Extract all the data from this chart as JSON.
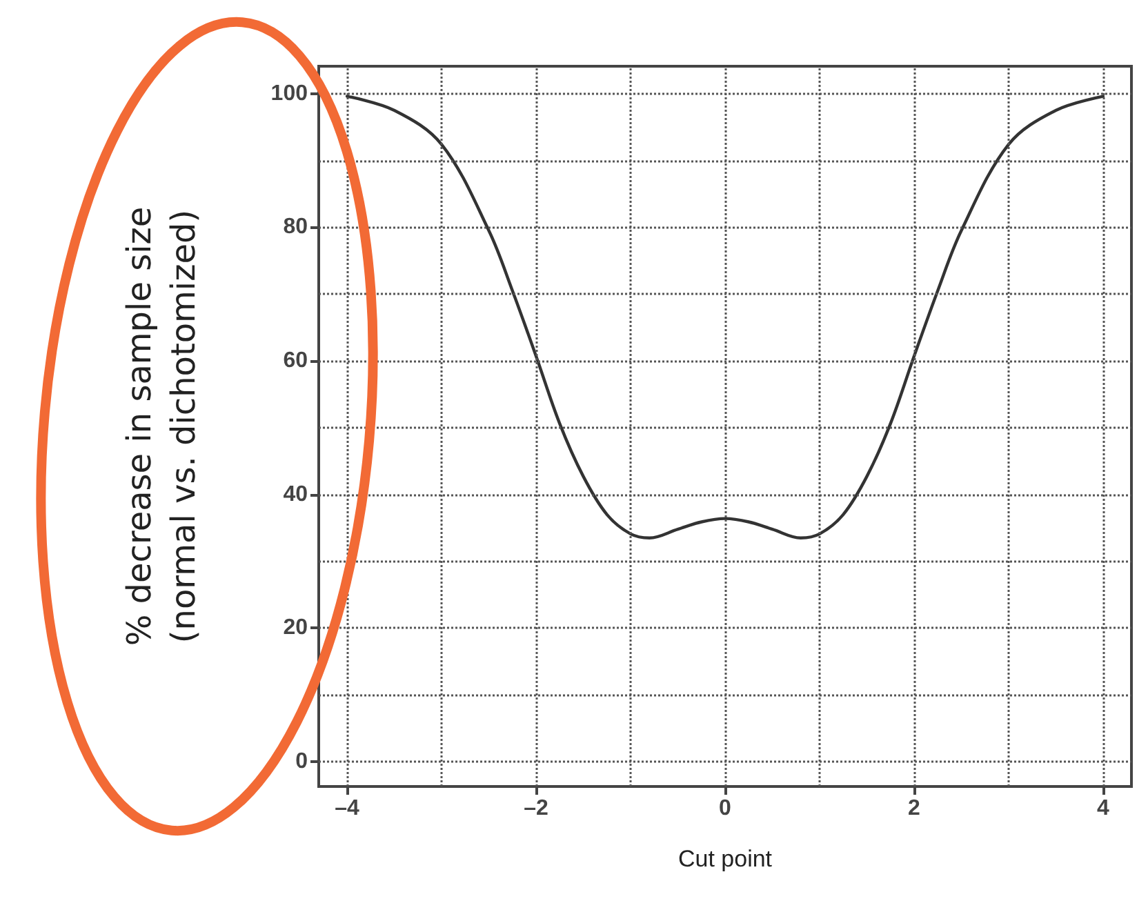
{
  "chart_data": {
    "type": "line",
    "xlabel": "Cut point",
    "ylabel": "% decrease in sample size\n(normal vs. dichotomized)",
    "x": [
      -4,
      -3.5,
      -3,
      -2.5,
      -2.25,
      -2,
      -1.75,
      -1.5,
      -1.25,
      -1,
      -0.8,
      -0.5,
      -0.25,
      0,
      0.25,
      0.5,
      0.8,
      1,
      1.25,
      1.5,
      1.75,
      2,
      2.25,
      2.5,
      3,
      3.5,
      4
    ],
    "series": [
      {
        "color": "#333333",
        "values": [
          99.6,
          97.5,
          92.4,
          79.5,
          70.5,
          60.7,
          50.6,
          42.7,
          37,
          34.1,
          33.5,
          34.8,
          35.9,
          36.4,
          35.9,
          34.8,
          33.5,
          34.1,
          37,
          42.7,
          50.6,
          60.7,
          70.5,
          79.5,
          92.4,
          97.5,
          99.6
        ]
      }
    ],
    "xlim": [
      -4.3,
      4.3
    ],
    "ylim": [
      -3.7,
      104.1
    ],
    "xticks": [
      {
        "value": -4,
        "label": "–4"
      },
      {
        "value": -3,
        "label": null
      },
      {
        "value": -2,
        "label": "–2"
      },
      {
        "value": -1,
        "label": null
      },
      0,
      {
        "value": 1,
        "label": null
      },
      2,
      {
        "value": 3,
        "label": null
      },
      4
    ],
    "yticks": [
      0,
      {
        "value": 10,
        "label": null
      },
      20,
      {
        "value": 30,
        "label": null
      },
      40,
      {
        "value": 50,
        "label": null
      },
      60,
      {
        "value": 70,
        "label": null
      },
      80,
      {
        "value": 90,
        "label": null
      },
      100
    ],
    "grid": true,
    "marker": "none",
    "line_style": "solid"
  }
}
